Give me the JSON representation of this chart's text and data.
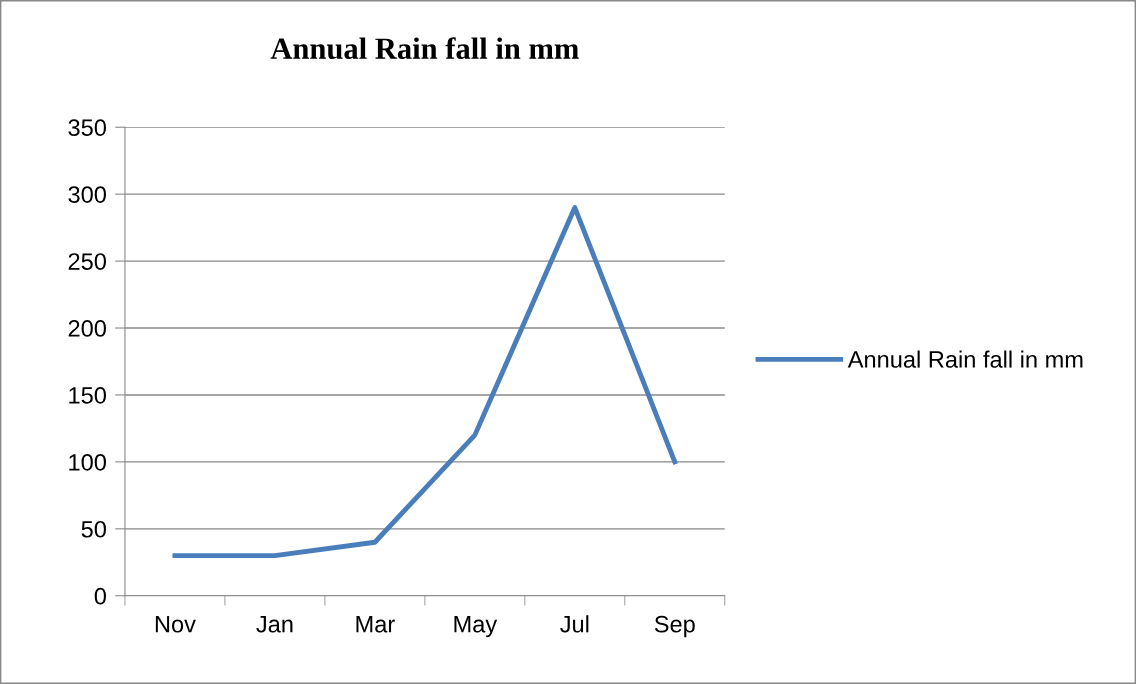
{
  "chart_data": {
    "type": "line",
    "title": "Annual Rain fall in mm",
    "categories": [
      "Nov",
      "Jan",
      "Mar",
      "May",
      "Jul",
      "Sep"
    ],
    "series": [
      {
        "name": "Annual Rain fall in mm",
        "color": "#4a7ebb",
        "values": [
          30,
          30,
          40,
          120,
          290,
          100
        ]
      }
    ],
    "ylim": [
      0,
      350
    ],
    "yticks": [
      0,
      50,
      100,
      150,
      200,
      250,
      300,
      350
    ],
    "grid": "y",
    "legend": "right",
    "marker": "none",
    "line_style": "solid"
  }
}
